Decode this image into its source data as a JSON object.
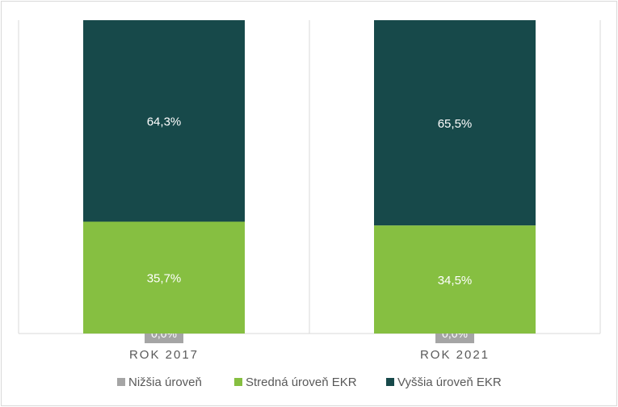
{
  "chart_data": {
    "type": "bar",
    "stacked": true,
    "categories": [
      "ROK 2017",
      "ROK 2021"
    ],
    "series": [
      {
        "name": "Nižšia úroveň",
        "values": [
          0.0,
          0.0
        ],
        "labels": [
          "0,0%",
          "0,0%"
        ],
        "color": "#a5a5a5"
      },
      {
        "name": "Stredná úroveň EKR",
        "values": [
          35.7,
          34.5
        ],
        "labels": [
          "35,7%",
          "34,5%"
        ],
        "color": "#86bf41"
      },
      {
        "name": "Vyššia úroveň EKR",
        "values": [
          64.3,
          65.5
        ],
        "labels": [
          "64,3%",
          "65,5%"
        ],
        "color": "#17494a"
      }
    ],
    "ylim": [
      0,
      100
    ],
    "grid": true,
    "legend": "bottom",
    "title": "",
    "xlabel": "",
    "ylabel": ""
  }
}
